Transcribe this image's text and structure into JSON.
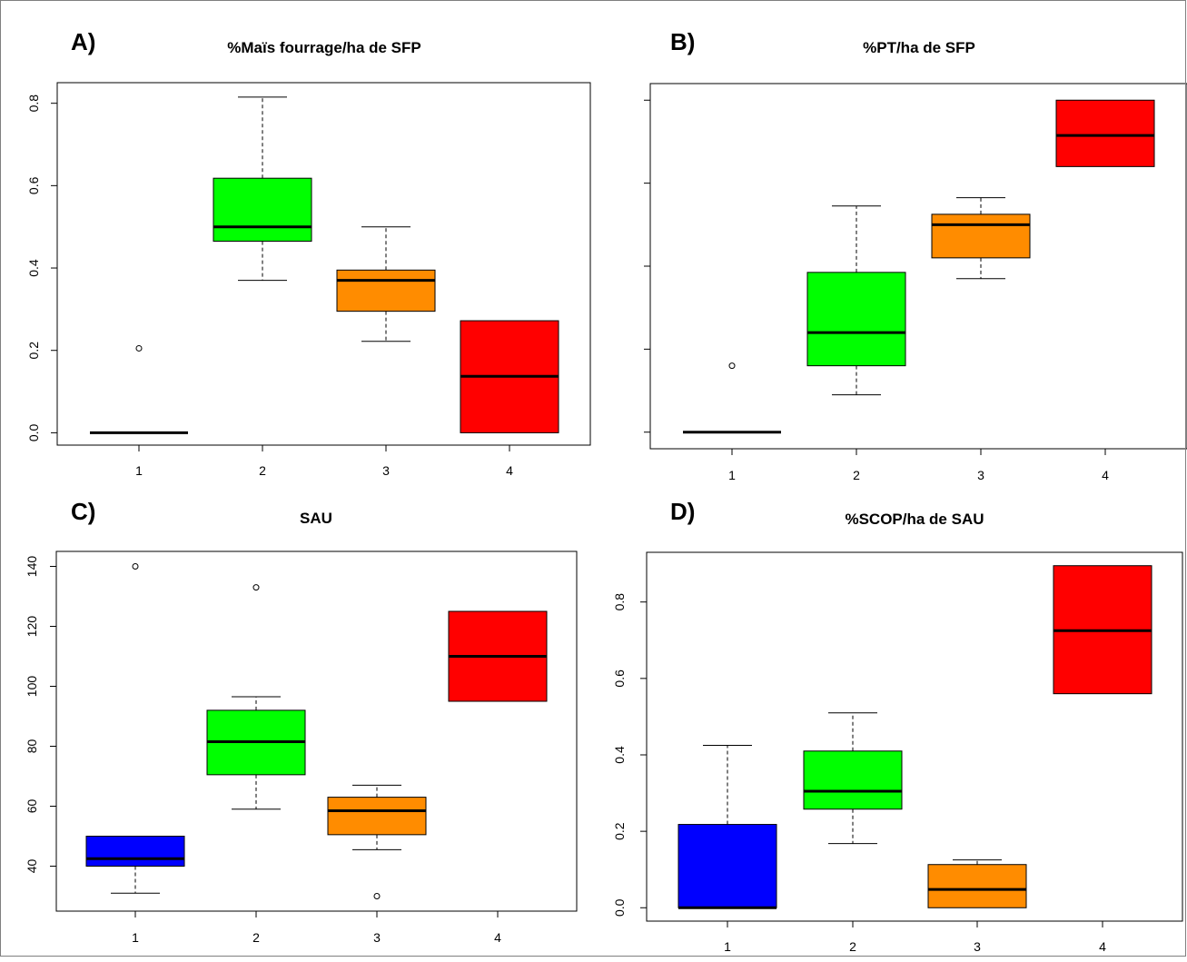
{
  "chart_data": [
    {
      "panel": "A)",
      "type": "box",
      "title": "%Maïs fourrage/ha de SFP",
      "categories": [
        "1",
        "2",
        "3",
        "4"
      ],
      "yticks": [
        "0.0",
        "0.2",
        "0.4",
        "0.6",
        "0.8"
      ],
      "ylim": [
        -0.03,
        0.85
      ],
      "boxes": [
        {
          "category": "1",
          "whisker_low": 0,
          "q1": 0,
          "median": 0,
          "q3": 0,
          "whisker_high": 0,
          "outliers": [
            0.205
          ],
          "color": "#0000ff"
        },
        {
          "category": "2",
          "whisker_low": 0.37,
          "q1": 0.465,
          "median": 0.5,
          "q3": 0.618,
          "whisker_high": 0.815,
          "outliers": [],
          "color": "#00ff00"
        },
        {
          "category": "3",
          "whisker_low": 0.222,
          "q1": 0.295,
          "median": 0.37,
          "q3": 0.395,
          "whisker_high": 0.5,
          "outliers": [],
          "color": "#ff8c00"
        },
        {
          "category": "4",
          "whisker_low": 0,
          "q1": 0,
          "median": 0.137,
          "q3": 0.272,
          "whisker_high": 0.272,
          "outliers": [],
          "color": "#ff0000"
        }
      ]
    },
    {
      "panel": "B)",
      "type": "box",
      "title": "%PT/ha de SFP",
      "categories": [
        "1",
        "2",
        "3",
        "4"
      ],
      "yticks": [
        "",
        "",
        "",
        "",
        ""
      ],
      "ylim": [
        -0.04,
        0.84
      ],
      "boxes": [
        {
          "category": "1",
          "whisker_low": 0,
          "q1": 0,
          "median": 0,
          "q3": 0,
          "whisker_high": 0,
          "outliers": [
            0.16
          ],
          "color": "#0000ff"
        },
        {
          "category": "2",
          "whisker_low": 0.09,
          "q1": 0.16,
          "median": 0.24,
          "q3": 0.385,
          "whisker_high": 0.545,
          "outliers": [],
          "color": "#00ff00"
        },
        {
          "category": "3",
          "whisker_low": 0.37,
          "q1": 0.42,
          "median": 0.5,
          "q3": 0.525,
          "whisker_high": 0.565,
          "outliers": [],
          "color": "#ff8c00"
        },
        {
          "category": "4",
          "whisker_low": 0.64,
          "q1": 0.64,
          "median": 0.715,
          "q3": 0.8,
          "whisker_high": 0.8,
          "outliers": [],
          "color": "#ff0000"
        }
      ]
    },
    {
      "panel": "C)",
      "type": "box",
      "title": "SAU",
      "categories": [
        "1",
        "2",
        "3",
        "4"
      ],
      "yticks": [
        "40",
        "60",
        "80",
        "100",
        "120",
        "140"
      ],
      "ylim": [
        25,
        145
      ],
      "boxes": [
        {
          "category": "1",
          "whisker_low": 31,
          "q1": 40,
          "median": 42.5,
          "q3": 50,
          "whisker_high": 50,
          "outliers": [
            140
          ],
          "color": "#0000ff"
        },
        {
          "category": "2",
          "whisker_low": 59,
          "q1": 70.5,
          "median": 81.5,
          "q3": 92,
          "whisker_high": 96.5,
          "outliers": [
            133
          ],
          "color": "#00ff00"
        },
        {
          "category": "3",
          "whisker_low": 45.5,
          "q1": 50.5,
          "median": 58.5,
          "q3": 63,
          "whisker_high": 67,
          "outliers": [
            30
          ],
          "color": "#ff8c00"
        },
        {
          "category": "4",
          "whisker_low": 95,
          "q1": 95,
          "median": 110,
          "q3": 125,
          "whisker_high": 125,
          "outliers": [],
          "color": "#ff0000"
        }
      ]
    },
    {
      "panel": "D)",
      "type": "box",
      "title": "%SCOP/ha de SAU",
      "categories": [
        "1",
        "2",
        "3",
        "4"
      ],
      "yticks": [
        "0.0",
        "0.2",
        "0.4",
        "0.6",
        "0.8"
      ],
      "ylim": [
        -0.035,
        0.93
      ],
      "boxes": [
        {
          "category": "1",
          "whisker_low": 0,
          "q1": 0,
          "median": 0,
          "q3": 0.218,
          "whisker_high": 0.425,
          "outliers": [],
          "color": "#0000ff"
        },
        {
          "category": "2",
          "whisker_low": 0.168,
          "q1": 0.258,
          "median": 0.305,
          "q3": 0.41,
          "whisker_high": 0.51,
          "outliers": [],
          "color": "#00ff00"
        },
        {
          "category": "3",
          "whisker_low": 0,
          "q1": 0,
          "median": 0.048,
          "q3": 0.113,
          "whisker_high": 0.125,
          "outliers": [],
          "color": "#ff8c00"
        },
        {
          "category": "4",
          "whisker_low": 0.56,
          "q1": 0.56,
          "median": 0.725,
          "q3": 0.895,
          "whisker_high": 0.895,
          "outliers": [],
          "color": "#ff0000"
        }
      ]
    }
  ]
}
